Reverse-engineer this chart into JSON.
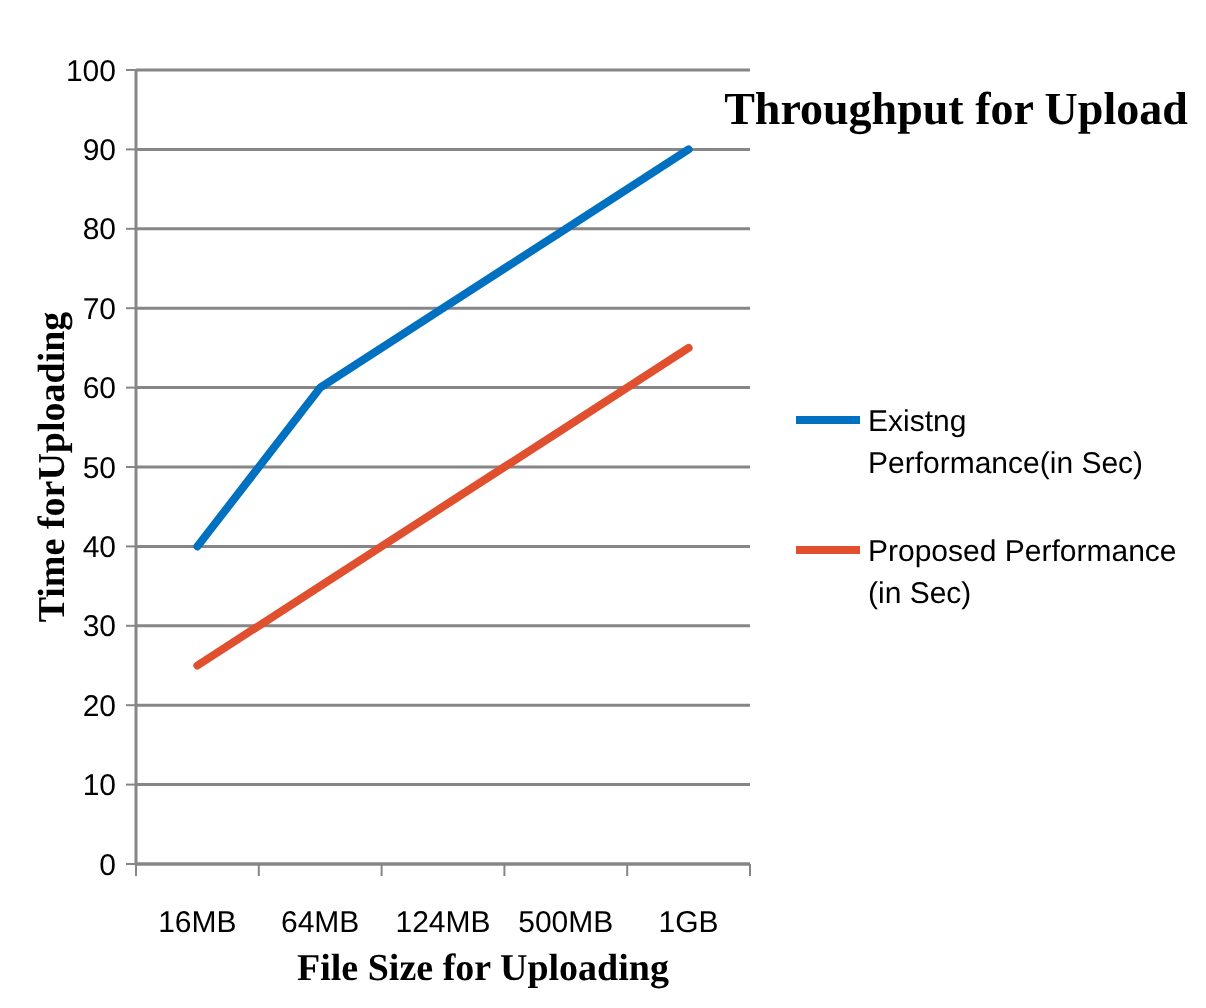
{
  "chart_data": {
    "type": "line",
    "title": "Throughput for Upload",
    "xlabel": "File Size for Uploading",
    "ylabel": "Time forUploading",
    "categories": [
      "16MB",
      "64MB",
      "124MB",
      "500MB",
      "1GB"
    ],
    "series": [
      {
        "name": "Existng Performance(in Sec)",
        "color": "#0070c0",
        "values": [
          40,
          60,
          70,
          80,
          90
        ]
      },
      {
        "name": "Proposed Performance (in Sec)",
        "color": "#e0502f",
        "values": [
          25,
          35,
          45,
          55,
          65
        ]
      }
    ],
    "ylim": [
      0,
      100
    ],
    "yticks": [
      0,
      10,
      20,
      30,
      40,
      50,
      60,
      70,
      80,
      90,
      100
    ],
    "grid": "y",
    "legend": "right",
    "marker": "none",
    "line_style": "solid"
  }
}
